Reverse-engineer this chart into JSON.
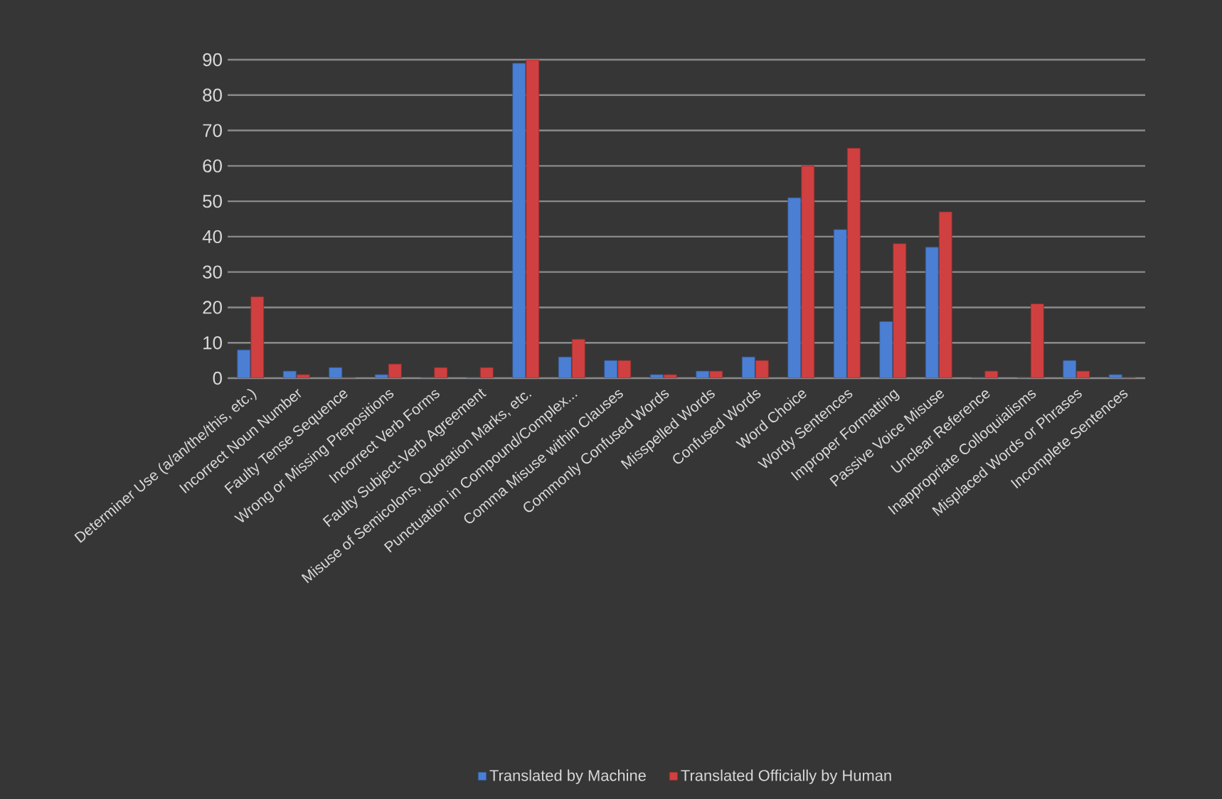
{
  "chart_data": {
    "type": "bar",
    "categories": [
      "Determiner Use (a/an/the/this, etc.)",
      "Incorrect Noun Number",
      "Faulty Tense Sequence",
      "Wrong or Missing Prepositions",
      "Incorrect Verb Forms",
      "Faulty Subject-Verb Agreement",
      "Misuse of Semicolons, Quotation Marks, etc.",
      "Punctuation in Compound/Complex...",
      "Comma Misuse within Clauses",
      "Commonly Confused Words",
      "Misspelled Words",
      "Confused Words",
      "Word Choice",
      "Wordy Sentences",
      "Improper Formatting",
      "Passive Voice Misuse",
      "Unclear Reference",
      "Inappropriate Colloquialisms",
      "Misplaced Words or Phrases",
      "Incomplete Sentences"
    ],
    "series": [
      {
        "name": "Translated by Machine",
        "color": "#4a7fd4",
        "values": [
          8,
          2,
          3,
          1,
          0,
          0,
          89,
          6,
          5,
          1,
          2,
          6,
          51,
          42,
          16,
          37,
          0,
          0,
          5,
          1
        ]
      },
      {
        "name": "Translated Officially by Human",
        "color": "#d04040",
        "values": [
          23,
          1,
          0,
          4,
          3,
          3,
          90,
          11,
          5,
          1,
          2,
          5,
          60,
          65,
          38,
          47,
          2,
          21,
          2,
          0
        ]
      }
    ],
    "ylim": [
      0,
      90
    ],
    "yticks": [
      0,
      10,
      20,
      30,
      40,
      50,
      60,
      70,
      80,
      90
    ],
    "grid": "y",
    "legend": "bottom"
  }
}
